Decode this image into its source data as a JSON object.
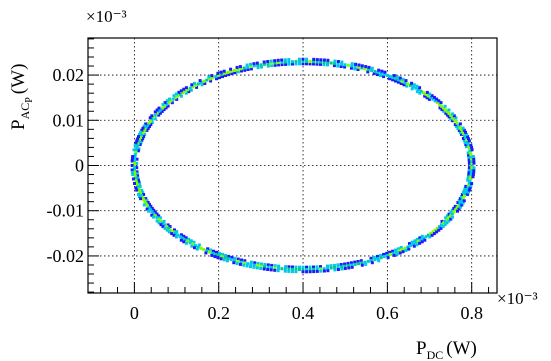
{
  "chart_data": {
    "type": "heatmap",
    "title": "",
    "xlabel": {
      "main": "P",
      "sub": "DC",
      "unit": "(W)"
    },
    "ylabel": {
      "main": "P",
      "sub": "AC",
      "subsub": "P",
      "unit": "(W)"
    },
    "x_multiplier": "×10⁻³",
    "y_multiplier": "×10⁻³",
    "xlim": [
      -0.11,
      0.86
    ],
    "ylim": [
      -0.0282,
      0.0282
    ],
    "xticks": [
      0,
      0.2,
      0.4,
      0.6,
      0.8
    ],
    "yticks": [
      -0.02,
      -0.01,
      0,
      0.01,
      0.02
    ],
    "xtick_labels": [
      "0",
      "0.2",
      "0.4",
      "0.6",
      "0.8"
    ],
    "ytick_labels": [
      "-0.02",
      "-0.01",
      "0",
      "0.01",
      "0.02"
    ],
    "grid": true,
    "ellipse": {
      "center_x": 0.4,
      "center_y": 0.0,
      "radius_x": 0.4,
      "radius_y": 0.023
    },
    "colors": {
      "low": "#1a1aff",
      "mid_low": "#00c8e6",
      "mid": "#00c896",
      "high": "#7cff00",
      "grid": "#000000",
      "axes": "#000000"
    }
  }
}
